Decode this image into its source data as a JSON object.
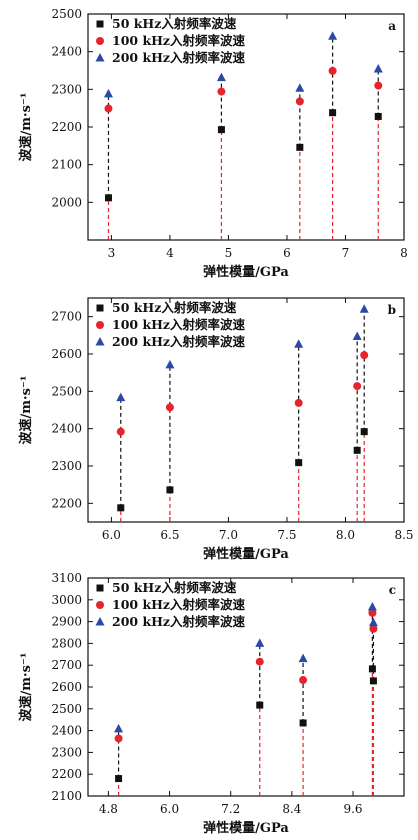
{
  "chart_data": [
    {
      "type": "scatter",
      "panel_label": "a",
      "xlabel": "弹性模量/GPa",
      "ylabel": "波速/m·s⁻¹",
      "xlim": [
        2.6,
        8.0
      ],
      "ylim": [
        1900,
        2500
      ],
      "xticks": [
        "3",
        "4",
        "5",
        "6",
        "7",
        "8"
      ],
      "xtick_values": [
        3,
        4,
        5,
        6,
        7,
        8
      ],
      "yticks": [
        "2000",
        "2100",
        "2200",
        "2300",
        "2400",
        "2500"
      ],
      "ytick_values": [
        2000,
        2100,
        2200,
        2300,
        2400,
        2500
      ],
      "legend_position": "top-left",
      "x": [
        2.95,
        4.88,
        6.22,
        6.78,
        7.56
      ],
      "series": [
        {
          "name": "50 kHz入射频率波速",
          "marker": "square",
          "color": "#111111",
          "values": [
            2012,
            2193,
            2146,
            2238,
            2228
          ]
        },
        {
          "name": "100 kHz入射频率波速",
          "marker": "circle",
          "color": "#e8242a",
          "values": [
            2249,
            2294,
            2268,
            2349,
            2310
          ]
        },
        {
          "name": "200 kHz入射频率波速",
          "marker": "triangle",
          "color": "#2c49a8",
          "values": [
            2288,
            2331,
            2303,
            2441,
            2354
          ]
        }
      ]
    },
    {
      "type": "scatter",
      "panel_label": "b",
      "xlabel": "弹性模量/GPa",
      "ylabel": "波速/m·s⁻¹",
      "xlim": [
        5.8,
        8.5
      ],
      "ylim": [
        2150,
        2750
      ],
      "xticks": [
        "6.0",
        "6.5",
        "7.0",
        "7.5",
        "8.0",
        "8.5"
      ],
      "xtick_values": [
        6.0,
        6.5,
        7.0,
        7.5,
        8.0,
        8.5
      ],
      "yticks": [
        "2200",
        "2300",
        "2400",
        "2500",
        "2600",
        "2700"
      ],
      "ytick_values": [
        2200,
        2300,
        2400,
        2500,
        2600,
        2700
      ],
      "legend_position": "top-left",
      "x": [
        6.08,
        6.5,
        7.6,
        8.1,
        8.16
      ],
      "series": [
        {
          "name": "50 kHz入射频率波速",
          "marker": "square",
          "color": "#111111",
          "values": [
            2188,
            2236,
            2309,
            2342,
            2392
          ]
        },
        {
          "name": "100 kHz入射频率波速",
          "marker": "circle",
          "color": "#e8242a",
          "values": [
            2392,
            2457,
            2469,
            2514,
            2597
          ]
        },
        {
          "name": "200 kHz入射频率波速",
          "marker": "triangle",
          "color": "#2c49a8",
          "values": [
            2483,
            2571,
            2626,
            2647,
            2720
          ]
        }
      ]
    },
    {
      "type": "scatter",
      "panel_label": "c",
      "xlabel": "弹性模量/GPa",
      "ylabel": "波速/m·s⁻¹",
      "xlim": [
        4.4,
        10.6
      ],
      "ylim": [
        2100,
        3100
      ],
      "xticks": [
        "4.8",
        "6.0",
        "7.2",
        "8.4",
        "9.6"
      ],
      "xtick_values": [
        4.8,
        6.0,
        7.2,
        8.4,
        9.6
      ],
      "yticks": [
        "2100",
        "2200",
        "2300",
        "2400",
        "2500",
        "2600",
        "2700",
        "2800",
        "2900",
        "3000",
        "3100"
      ],
      "ytick_values": [
        2100,
        2200,
        2300,
        2400,
        2500,
        2600,
        2700,
        2800,
        2900,
        3000,
        3100
      ],
      "legend_position": "top-left",
      "x": [
        5.0,
        7.77,
        8.62,
        9.98,
        10.0
      ],
      "series": [
        {
          "name": "50 kHz入射频率波速",
          "marker": "square",
          "color": "#111111",
          "values": [
            2180,
            2517,
            2435,
            2683,
            2628
          ]
        },
        {
          "name": "100 kHz入射频率波速",
          "marker": "circle",
          "color": "#e8242a",
          "values": [
            2364,
            2716,
            2632,
            2940,
            2867
          ]
        },
        {
          "name": "200 kHz入射频率波速",
          "marker": "triangle",
          "color": "#2c49a8",
          "values": [
            2408,
            2800,
            2730,
            2967,
            2895
          ]
        }
      ]
    }
  ]
}
